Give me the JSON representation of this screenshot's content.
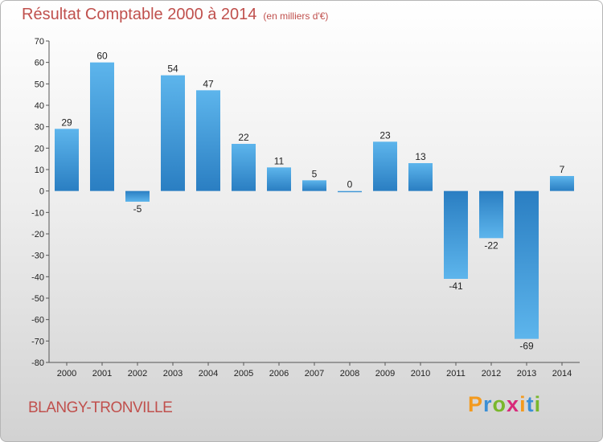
{
  "chart_title": "Résultat Comptable 2000 à 2014",
  "chart_subtitle": "(en milliers d'€)",
  "commune": "BLANGY-TRONVILLE",
  "logo": {
    "letters": [
      "P",
      "r",
      "o",
      "x",
      "i",
      "t",
      "i"
    ],
    "colors": [
      "#f39a1e",
      "#3a8fd6",
      "#79b72d",
      "#d8297a",
      "#f39a1e",
      "#3a8fd6",
      "#79b72d"
    ]
  },
  "colors": {
    "bar_top": "#5db5ec",
    "bar_bottom": "#2a7ec2",
    "title": "#c0504d"
  },
  "chart_data": {
    "type": "bar",
    "title": "Résultat Comptable 2000 à 2014",
    "subtitle": "(en milliers d'€)",
    "xlabel": "",
    "ylabel": "",
    "ylim": [
      -80,
      70
    ],
    "yticks": [
      70,
      60,
      50,
      40,
      30,
      20,
      10,
      0,
      -10,
      -20,
      -30,
      -40,
      -50,
      -60,
      -70,
      -80
    ],
    "categories": [
      "2000",
      "2001",
      "2002",
      "2003",
      "2004",
      "2005",
      "2006",
      "2007",
      "2008",
      "2009",
      "2010",
      "2011",
      "2012",
      "2013",
      "2014"
    ],
    "values": [
      29,
      60,
      -5,
      54,
      47,
      22,
      11,
      5,
      0,
      23,
      13,
      -41,
      -22,
      -69,
      7
    ],
    "grid": false,
    "legend": "none"
  }
}
